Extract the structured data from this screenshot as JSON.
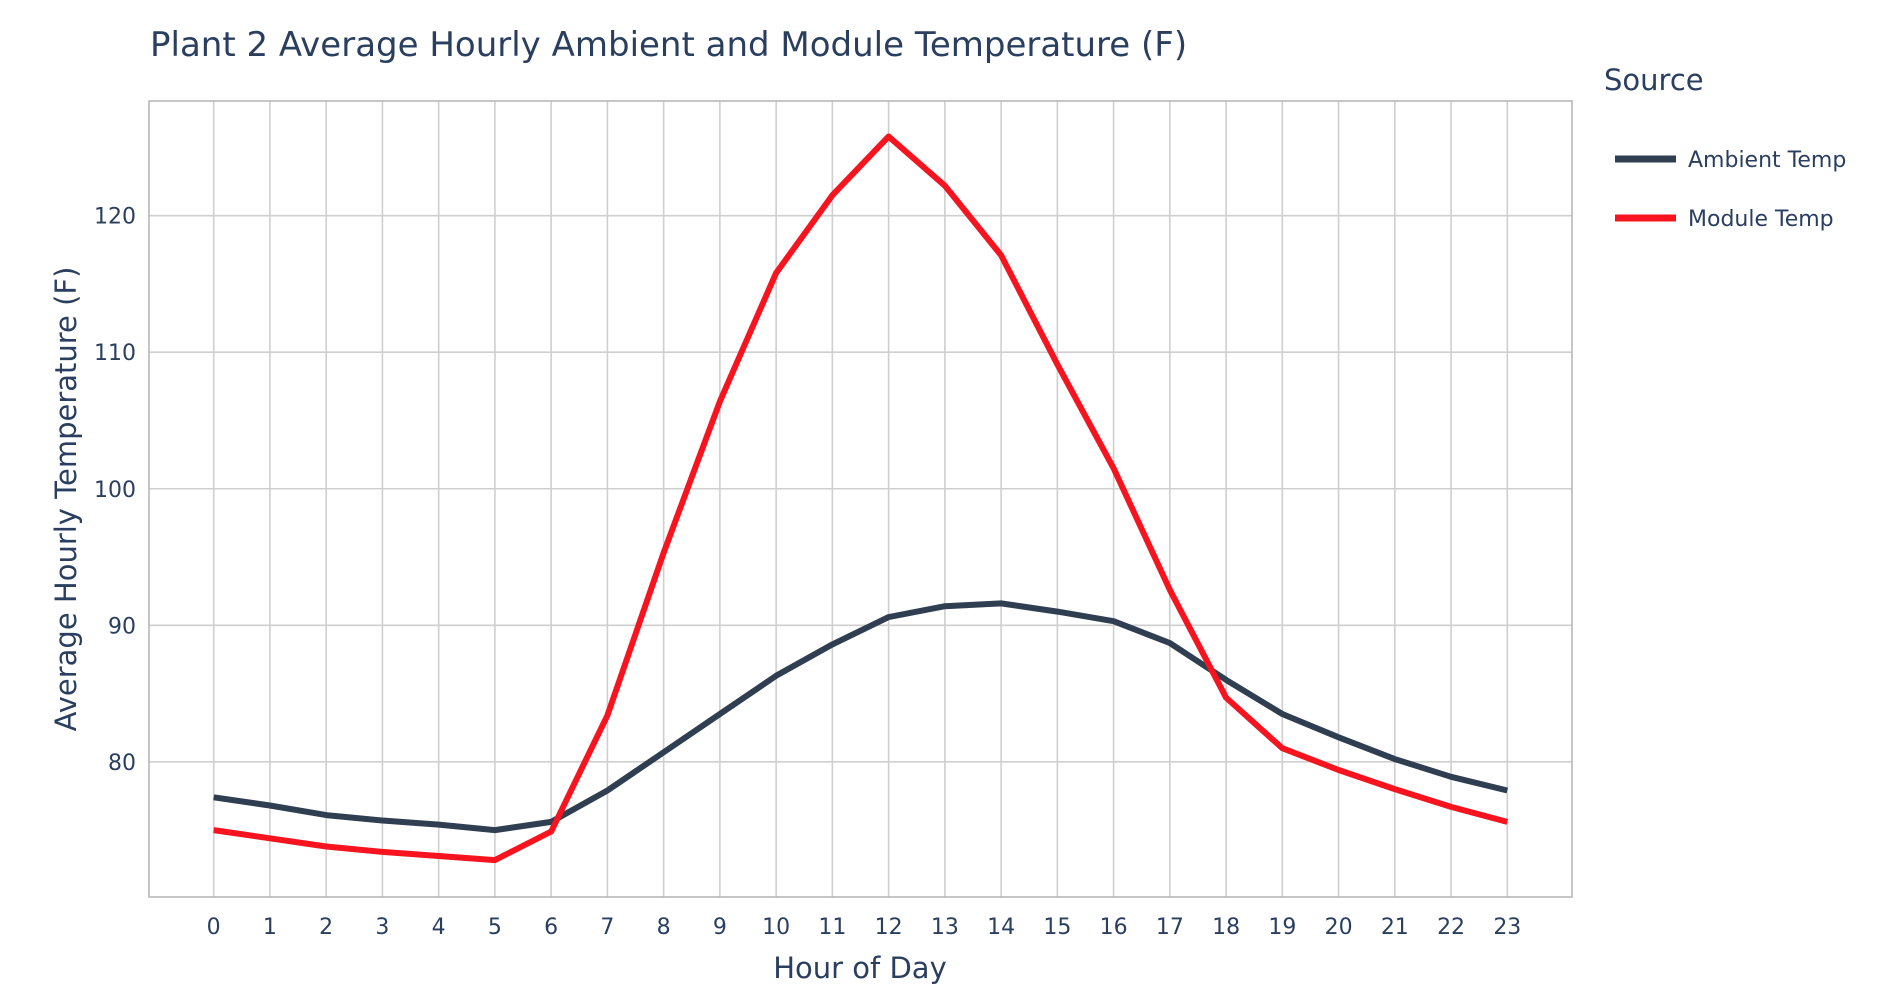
{
  "chart_data": {
    "type": "line",
    "title": "Plant 2 Average Hourly Ambient and Module Temperature (F)",
    "xlabel": "Hour of Day",
    "ylabel": "Average Hourly Temperature (F)",
    "x": [
      0,
      1,
      2,
      3,
      4,
      5,
      6,
      7,
      8,
      9,
      10,
      11,
      12,
      13,
      14,
      15,
      16,
      17,
      18,
      19,
      20,
      21,
      22,
      23
    ],
    "xticks": [
      "0",
      "1",
      "2",
      "3",
      "4",
      "5",
      "6",
      "7",
      "8",
      "9",
      "10",
      "11",
      "12",
      "13",
      "14",
      "15",
      "16",
      "17",
      "18",
      "19",
      "20",
      "21",
      "22",
      "23"
    ],
    "yticks": [
      "80",
      "90",
      "100",
      "110",
      "120"
    ],
    "ytick_values": [
      80,
      90,
      100,
      110,
      120
    ],
    "xlim": [
      -1.15,
      24.15
    ],
    "ylim": [
      70.1,
      128.4
    ],
    "grid": true,
    "legend": {
      "title": "Source",
      "placement": "right"
    },
    "series": [
      {
        "name": "Ambient Temp",
        "color": "#2f3e51",
        "values": [
          77.4,
          76.8,
          76.1,
          75.7,
          75.4,
          75.0,
          75.6,
          77.9,
          80.7,
          83.5,
          86.3,
          88.6,
          90.6,
          91.4,
          91.6,
          91.0,
          90.3,
          88.7,
          86.0,
          83.5,
          81.8,
          80.2,
          78.9,
          77.9
        ]
      },
      {
        "name": "Module Temp",
        "color": "#f7141f",
        "values": [
          75.0,
          74.4,
          73.8,
          73.4,
          73.1,
          72.8,
          74.9,
          83.4,
          95.3,
          106.4,
          115.8,
          121.5,
          125.8,
          122.2,
          117.1,
          109.1,
          101.5,
          92.6,
          84.7,
          81.0,
          79.4,
          78.0,
          76.7,
          75.6
        ]
      }
    ]
  }
}
